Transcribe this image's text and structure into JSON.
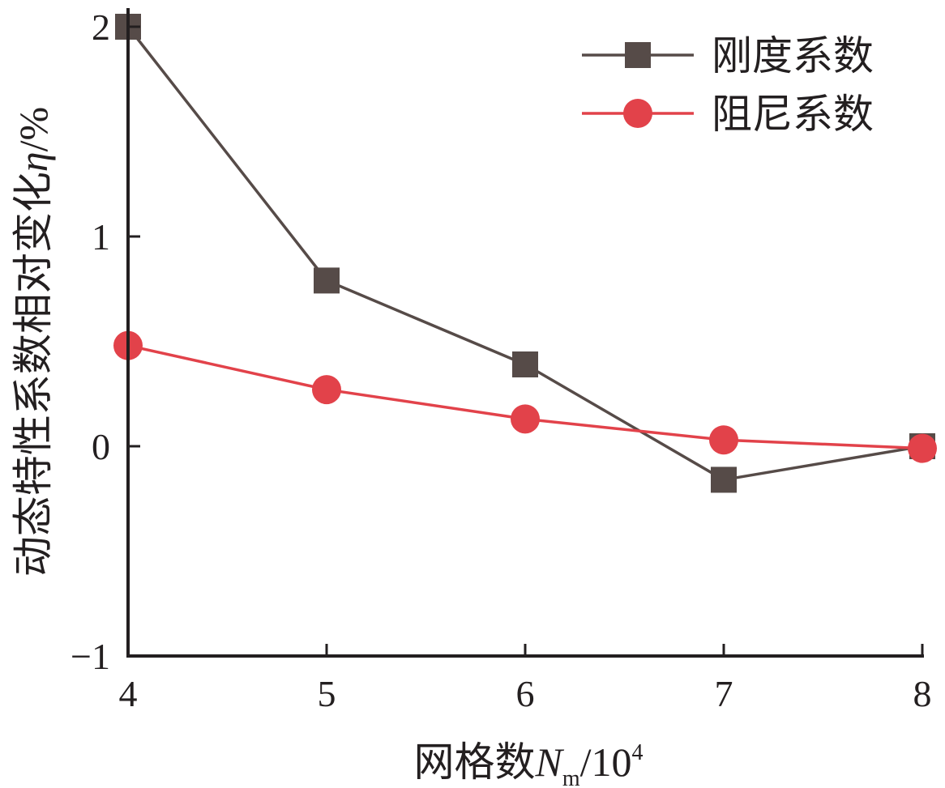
{
  "chart_data": {
    "type": "line",
    "title": "",
    "x": [
      4,
      5,
      6,
      7,
      8
    ],
    "xlim": [
      4,
      8
    ],
    "ylim": [
      -1,
      2
    ],
    "x_ticks": [
      "4",
      "5",
      "6",
      "7",
      "8"
    ],
    "y_ticks": [
      "−1",
      "0",
      "1",
      "2"
    ],
    "y_tick_values": [
      -1,
      0,
      1,
      2
    ],
    "xlabel": {
      "main": "网格数",
      "symbol": "N",
      "subscript": "m",
      "unit_base": "/10",
      "unit_exp": "4"
    },
    "ylabel": {
      "main": "动态特性系数相对变化",
      "symbol": "η",
      "unit": "/%"
    },
    "grid": false,
    "legend_position": "top-right",
    "series": [
      {
        "name": "刚度系数",
        "marker": "square",
        "color": "#564b48",
        "values": [
          2.0,
          0.79,
          0.39,
          -0.16,
          0.0
        ]
      },
      {
        "name": "阻尼系数",
        "marker": "circle",
        "color": "#e2424a",
        "values": [
          0.48,
          0.27,
          0.13,
          0.03,
          -0.01
        ]
      }
    ]
  }
}
